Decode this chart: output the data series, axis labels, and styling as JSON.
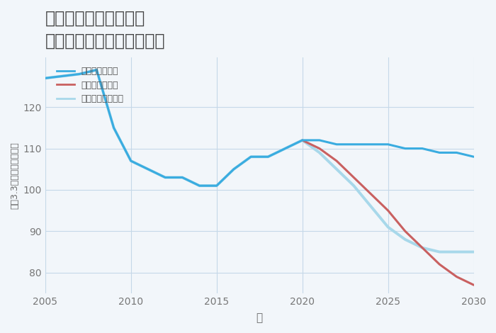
{
  "title": "奈良県橿原市大垣町の\n中古マンションの価格推移",
  "xlabel": "年",
  "ylabel": "坪（3.3㎡）単価（万円）",
  "background_color": "#f2f6fa",
  "plot_bg_color": "#f2f6fa",
  "grid_color": "#c5d8e8",
  "ylim": [
    75,
    132
  ],
  "xlim": [
    2005,
    2030
  ],
  "yticks": [
    80,
    90,
    100,
    110,
    120
  ],
  "xticks": [
    2005,
    2010,
    2015,
    2020,
    2025,
    2030
  ],
  "good_scenario": {
    "label": "グッドシナリオ",
    "color": "#3aace0",
    "linewidth": 2.2,
    "x": [
      2005,
      2007,
      2008,
      2009,
      2010,
      2011,
      2012,
      2013,
      2014,
      2015,
      2016,
      2017,
      2018,
      2019,
      2020,
      2021,
      2022,
      2023,
      2024,
      2025,
      2026,
      2027,
      2028,
      2029,
      2030
    ],
    "y": [
      127,
      128,
      129,
      115,
      107,
      105,
      103,
      103,
      101,
      101,
      105,
      108,
      108,
      110,
      112,
      112,
      111,
      111,
      111,
      111,
      110,
      110,
      109,
      109,
      108
    ]
  },
  "bad_scenario": {
    "label": "バッドシナリオ",
    "color": "#c96060",
    "linewidth": 2.2,
    "x": [
      2020,
      2021,
      2022,
      2023,
      2024,
      2025,
      2026,
      2027,
      2028,
      2029,
      2030
    ],
    "y": [
      112,
      110,
      107,
      103,
      99,
      95,
      90,
      86,
      82,
      79,
      77
    ]
  },
  "normal_scenario": {
    "label": "ノーマルシナリオ",
    "color": "#a8d8ea",
    "linewidth": 2.8,
    "x": [
      2005,
      2007,
      2008,
      2009,
      2010,
      2011,
      2012,
      2013,
      2014,
      2015,
      2016,
      2017,
      2018,
      2019,
      2020,
      2021,
      2022,
      2023,
      2024,
      2025,
      2026,
      2027,
      2028,
      2029,
      2030
    ],
    "y": [
      127,
      128,
      129,
      115,
      107,
      105,
      103,
      103,
      101,
      101,
      105,
      108,
      108,
      110,
      112,
      109,
      105,
      101,
      96,
      91,
      88,
      86,
      85,
      85,
      85
    ]
  }
}
